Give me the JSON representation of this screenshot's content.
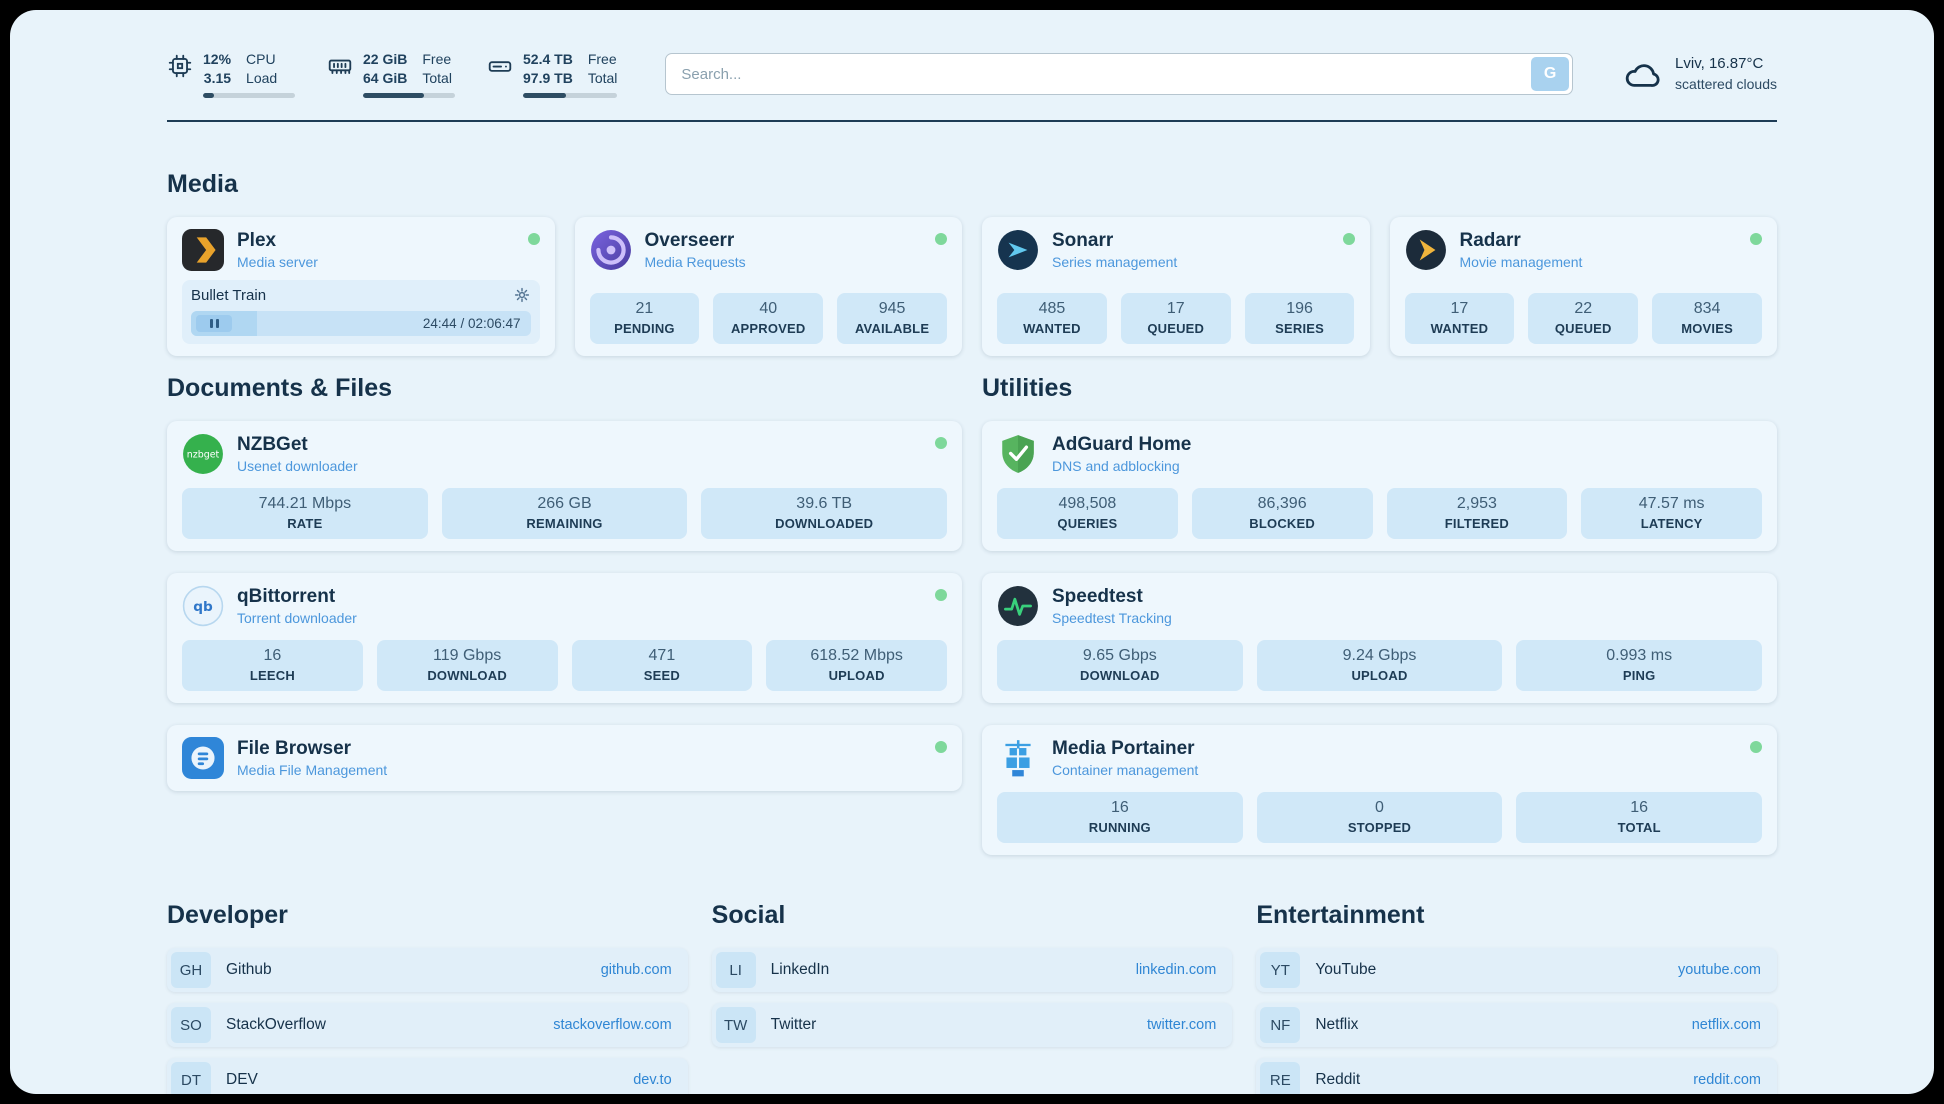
{
  "colors": {
    "accent": "#2f86d4",
    "status_online": "#7ed89b",
    "panel_bg": "#e8f3fa",
    "card_bg": "#eef7fd",
    "stat_bg": "#d0e8f8"
  },
  "header": {
    "system": [
      {
        "id": "cpu",
        "icon": "cpu-icon",
        "values": [
          "12%",
          "3.15"
        ],
        "labels": [
          "CPU",
          "Load"
        ],
        "progress_pct": 12
      },
      {
        "id": "memory",
        "icon": "memory-icon",
        "values": [
          "22 GiB",
          "64 GiB"
        ],
        "labels": [
          "Free",
          "Total"
        ],
        "progress_pct": 66
      },
      {
        "id": "disk",
        "icon": "disk-icon",
        "values": [
          "52.4 TB",
          "97.9 TB"
        ],
        "labels": [
          "Free",
          "Total"
        ],
        "progress_pct": 46
      }
    ],
    "search": {
      "placeholder": "Search...",
      "button_label": "G"
    },
    "weather": {
      "icon": "cloud-icon",
      "location": "Lviv, 16.87°C",
      "condition": "scattered clouds"
    }
  },
  "app_sections": [
    {
      "id": "media",
      "title": "Media",
      "cards": [
        {
          "name": "Plex",
          "subtitle": "Media server",
          "icon": "plex-icon",
          "online": true,
          "player": {
            "title": "Bullet Train",
            "time": "24:44 / 02:06:47",
            "progress_pct": 19.5
          }
        },
        {
          "name": "Overseerr",
          "subtitle": "Media Requests",
          "icon": "overseerr-icon",
          "online": true,
          "stats": [
            {
              "value": "21",
              "label": "PENDING"
            },
            {
              "value": "40",
              "label": "APPROVED"
            },
            {
              "value": "945",
              "label": "AVAILABLE"
            }
          ]
        },
        {
          "name": "Sonarr",
          "subtitle": "Series management",
          "icon": "sonarr-icon",
          "online": true,
          "stats": [
            {
              "value": "485",
              "label": "WANTED"
            },
            {
              "value": "17",
              "label": "QUEUED"
            },
            {
              "value": "196",
              "label": "SERIES"
            }
          ]
        },
        {
          "name": "Radarr",
          "subtitle": "Movie management",
          "icon": "radarr-icon",
          "online": true,
          "stats": [
            {
              "value": "17",
              "label": "WANTED"
            },
            {
              "value": "22",
              "label": "QUEUED"
            },
            {
              "value": "834",
              "label": "MOVIES"
            }
          ]
        }
      ]
    },
    {
      "id": "documents",
      "title": "Documents & Files",
      "cards": [
        {
          "name": "NZBGet",
          "subtitle": "Usenet downloader",
          "icon": "nzbget-icon",
          "online": true,
          "stats": [
            {
              "value": "744.21 Mbps",
              "label": "RATE"
            },
            {
              "value": "266 GB",
              "label": "REMAINING"
            },
            {
              "value": "39.6 TB",
              "label": "DOWNLOADED"
            }
          ]
        },
        {
          "name": "qBittorrent",
          "subtitle": "Torrent downloader",
          "icon": "qbittorrent-icon",
          "online": true,
          "stats": [
            {
              "value": "16",
              "label": "LEECH"
            },
            {
              "value": "119 Gbps",
              "label": "DOWNLOAD"
            },
            {
              "value": "471",
              "label": "SEED"
            },
            {
              "value": "618.52 Mbps",
              "label": "UPLOAD"
            }
          ]
        },
        {
          "name": "File Browser",
          "subtitle": "Media File Management",
          "icon": "filebrowser-icon",
          "online": true
        }
      ]
    },
    {
      "id": "utilities",
      "title": "Utilities",
      "cards": [
        {
          "name": "AdGuard Home",
          "subtitle": "DNS and adblocking",
          "icon": "adguard-icon",
          "online": false,
          "stats": [
            {
              "value": "498,508",
              "label": "QUERIES"
            },
            {
              "value": "86,396",
              "label": "BLOCKED"
            },
            {
              "value": "2,953",
              "label": "FILTERED"
            },
            {
              "value": "47.57 ms",
              "label": "LATENCY"
            }
          ]
        },
        {
          "name": "Speedtest",
          "subtitle": "Speedtest Tracking",
          "icon": "speedtest-icon",
          "online": false,
          "stats": [
            {
              "value": "9.65 Gbps",
              "label": "DOWNLOAD"
            },
            {
              "value": "9.24 Gbps",
              "label": "UPLOAD"
            },
            {
              "value": "0.993 ms",
              "label": "PING"
            }
          ]
        },
        {
          "name": "Media Portainer",
          "subtitle": "Container management",
          "icon": "portainer-icon",
          "online": true,
          "stats": [
            {
              "value": "16",
              "label": "RUNNING"
            },
            {
              "value": "0",
              "label": "STOPPED"
            },
            {
              "value": "16",
              "label": "TOTAL"
            }
          ]
        }
      ]
    }
  ],
  "bookmark_sections": [
    {
      "id": "developer",
      "title": "Developer",
      "links": [
        {
          "abbr": "GH",
          "name": "Github",
          "url": "github.com"
        },
        {
          "abbr": "SO",
          "name": "StackOverflow",
          "url": "stackoverflow.com"
        },
        {
          "abbr": "DT",
          "name": "DEV",
          "url": "dev.to"
        }
      ]
    },
    {
      "id": "social",
      "title": "Social",
      "links": [
        {
          "abbr": "LI",
          "name": "LinkedIn",
          "url": "linkedin.com"
        },
        {
          "abbr": "TW",
          "name": "Twitter",
          "url": "twitter.com"
        }
      ]
    },
    {
      "id": "entertainment",
      "title": "Entertainment",
      "links": [
        {
          "abbr": "YT",
          "name": "YouTube",
          "url": "youtube.com"
        },
        {
          "abbr": "NF",
          "name": "Netflix",
          "url": "netflix.com"
        },
        {
          "abbr": "RE",
          "name": "Reddit",
          "url": "reddit.com"
        }
      ]
    }
  ]
}
